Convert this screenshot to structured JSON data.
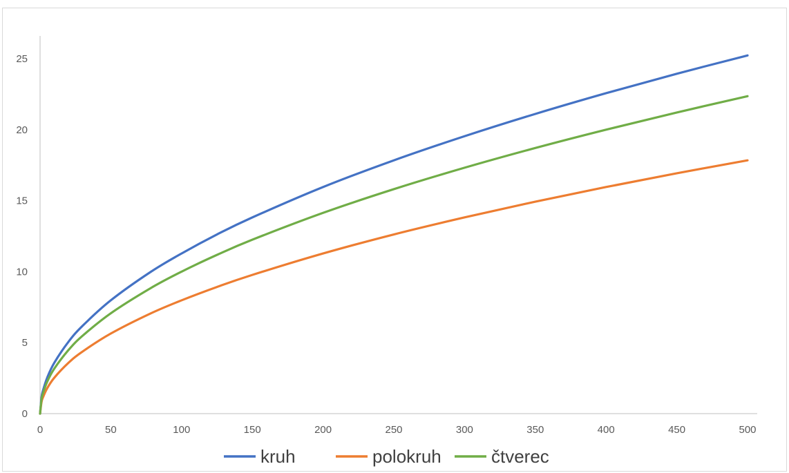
{
  "chart_data": {
    "type": "line",
    "title": "",
    "xlabel": "",
    "ylabel": "",
    "xlim": [
      0,
      500
    ],
    "ylim": [
      0,
      25
    ],
    "x_ticks": [
      "0",
      "50",
      "100",
      "150",
      "200",
      "250",
      "300",
      "350",
      "400",
      "450",
      "500"
    ],
    "y_ticks": [
      "0",
      "5",
      "10",
      "15",
      "20",
      "25"
    ],
    "grid": false,
    "legend_position": "bottom",
    "x": [
      0,
      1,
      2,
      5,
      10,
      20,
      30,
      50,
      78,
      100,
      125,
      150,
      200,
      250,
      300,
      350,
      400,
      450,
      500
    ],
    "series": [
      {
        "name": "kruh",
        "color": "#4472c4",
        "values": [
          0,
          1.13,
          1.6,
          2.52,
          3.57,
          5.05,
          6.18,
          7.98,
          9.97,
          11.28,
          12.62,
          13.82,
          15.96,
          17.84,
          19.54,
          21.11,
          22.57,
          23.94,
          25.23
        ]
      },
      {
        "name": "polokruh",
        "color": "#ed7d31",
        "values": [
          0,
          0.8,
          1.13,
          1.78,
          2.52,
          3.57,
          4.37,
          5.64,
          7.05,
          7.98,
          8.92,
          9.77,
          11.28,
          12.62,
          13.82,
          14.93,
          15.96,
          16.93,
          17.84
        ]
      },
      {
        "name": "čtverec",
        "color": "#70ad47",
        "values": [
          0,
          1.0,
          1.41,
          2.24,
          3.16,
          4.47,
          5.48,
          7.07,
          8.83,
          10.0,
          11.18,
          12.25,
          14.14,
          15.81,
          17.32,
          18.71,
          20.0,
          21.21,
          22.36
        ]
      }
    ]
  }
}
